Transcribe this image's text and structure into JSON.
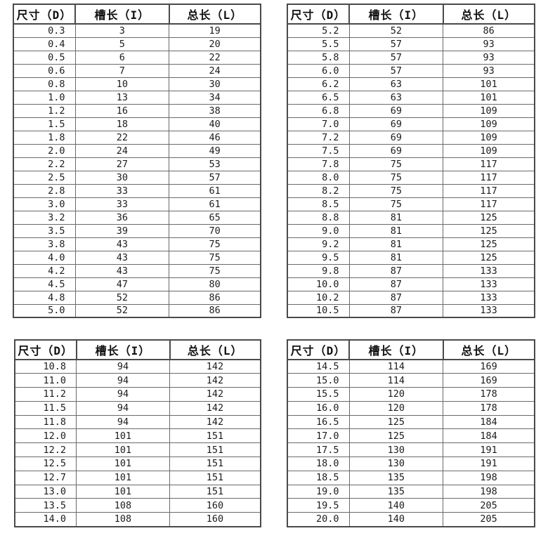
{
  "columns": [
    "尺寸（D）",
    "槽长（I）",
    "总长（L）"
  ],
  "colors": {
    "background": "#ffffff",
    "border_outer": "#4a4a4a",
    "border_inner": "#6a6a6a",
    "text": "#1c1c1c"
  },
  "tables": [
    {
      "rows": [
        [
          "0.3",
          "3",
          "19"
        ],
        [
          "0.4",
          "5",
          "20"
        ],
        [
          "0.5",
          "6",
          "22"
        ],
        [
          "0.6",
          "7",
          "24"
        ],
        [
          "0.8",
          "10",
          "30"
        ],
        [
          "1.0",
          "13",
          "34"
        ],
        [
          "1.2",
          "16",
          "38"
        ],
        [
          "1.5",
          "18",
          "40"
        ],
        [
          "1.8",
          "22",
          "46"
        ],
        [
          "2.0",
          "24",
          "49"
        ],
        [
          "2.2",
          "27",
          "53"
        ],
        [
          "2.5",
          "30",
          "57"
        ],
        [
          "2.8",
          "33",
          "61"
        ],
        [
          "3.0",
          "33",
          "61"
        ],
        [
          "3.2",
          "36",
          "65"
        ],
        [
          "3.5",
          "39",
          "70"
        ],
        [
          "3.8",
          "43",
          "75"
        ],
        [
          "4.0",
          "43",
          "75"
        ],
        [
          "4.2",
          "43",
          "75"
        ],
        [
          "4.5",
          "47",
          "80"
        ],
        [
          "4.8",
          "52",
          "86"
        ],
        [
          "5.0",
          "52",
          "86"
        ]
      ]
    },
    {
      "rows": [
        [
          "5.2",
          "52",
          "86"
        ],
        [
          "5.5",
          "57",
          "93"
        ],
        [
          "5.8",
          "57",
          "93"
        ],
        [
          "6.0",
          "57",
          "93"
        ],
        [
          "6.2",
          "63",
          "101"
        ],
        [
          "6.5",
          "63",
          "101"
        ],
        [
          "6.8",
          "69",
          "109"
        ],
        [
          "7.0",
          "69",
          "109"
        ],
        [
          "7.2",
          "69",
          "109"
        ],
        [
          "7.5",
          "69",
          "109"
        ],
        [
          "7.8",
          "75",
          "117"
        ],
        [
          "8.0",
          "75",
          "117"
        ],
        [
          "8.2",
          "75",
          "117"
        ],
        [
          "8.5",
          "75",
          "117"
        ],
        [
          "8.8",
          "81",
          "125"
        ],
        [
          "9.0",
          "81",
          "125"
        ],
        [
          "9.2",
          "81",
          "125"
        ],
        [
          "9.5",
          "81",
          "125"
        ],
        [
          "9.8",
          "87",
          "133"
        ],
        [
          "10.0",
          "87",
          "133"
        ],
        [
          "10.2",
          "87",
          "133"
        ],
        [
          "10.5",
          "87",
          "133"
        ]
      ]
    },
    {
      "rows": [
        [
          "10.8",
          "94",
          "142"
        ],
        [
          "11.0",
          "94",
          "142"
        ],
        [
          "11.2",
          "94",
          "142"
        ],
        [
          "11.5",
          "94",
          "142"
        ],
        [
          "11.8",
          "94",
          "142"
        ],
        [
          "12.0",
          "101",
          "151"
        ],
        [
          "12.2",
          "101",
          "151"
        ],
        [
          "12.5",
          "101",
          "151"
        ],
        [
          "12.7",
          "101",
          "151"
        ],
        [
          "13.0",
          "101",
          "151"
        ],
        [
          "13.5",
          "108",
          "160"
        ],
        [
          "14.0",
          "108",
          "160"
        ]
      ]
    },
    {
      "rows": [
        [
          "14.5",
          "114",
          "169"
        ],
        [
          "15.0",
          "114",
          "169"
        ],
        [
          "15.5",
          "120",
          "178"
        ],
        [
          "16.0",
          "120",
          "178"
        ],
        [
          "16.5",
          "125",
          "184"
        ],
        [
          "17.0",
          "125",
          "184"
        ],
        [
          "17.5",
          "130",
          "191"
        ],
        [
          "18.0",
          "130",
          "191"
        ],
        [
          "18.5",
          "135",
          "198"
        ],
        [
          "19.0",
          "135",
          "198"
        ],
        [
          "19.5",
          "140",
          "205"
        ],
        [
          "20.0",
          "140",
          "205"
        ]
      ]
    }
  ]
}
